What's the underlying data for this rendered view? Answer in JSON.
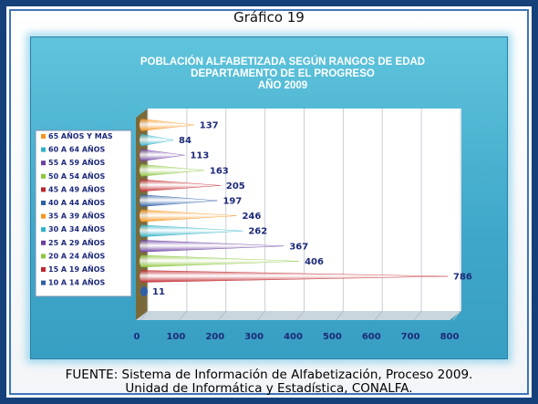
{
  "page": {
    "heading": "Gráfico 19",
    "footer_line1": "FUENTE: Sistema de Información de Alfabetización, Proceso 2009.",
    "footer_line2": "Unidad de Informática y Estadística, CONALFA."
  },
  "chart_data": {
    "type": "bar",
    "orientation": "horizontal",
    "title_lines": [
      "POBLACIÓN ALFABETIZADA SEGÚN RANGOS DE EDAD",
      "DEPARTAMENTO DE EL PROGRESO",
      "AÑO 2009"
    ],
    "categories": [
      "65 AÑOS Y MAS",
      "60 A 64 AÑOS",
      "55 A 59 AÑOS",
      "50 A 54 AÑOS",
      "45 A 49 AÑOS",
      "40 A 44 AÑOS",
      "35 A 39 AÑOS",
      "30 A 34 AÑOS",
      "25 A 29 AÑOS",
      "20 A 24 AÑOS",
      "15 A 19 AÑOS",
      "10 A 14 AÑOS"
    ],
    "values": [
      137,
      84,
      113,
      163,
      205,
      197,
      246,
      262,
      367,
      406,
      786,
      11
    ],
    "colors": [
      "#f7941d",
      "#2fb1c8",
      "#6b3fa0",
      "#8dc63f",
      "#c1272d",
      "#2e5fa8",
      "#f7941d",
      "#2fb1c8",
      "#6b3fa0",
      "#8dc63f",
      "#c1272d",
      "#2e5fa8"
    ],
    "xlim": [
      0,
      800
    ],
    "xticks": [
      0,
      100,
      200,
      300,
      400,
      500,
      600,
      700,
      800
    ],
    "grid": true,
    "legend_position": "left"
  }
}
